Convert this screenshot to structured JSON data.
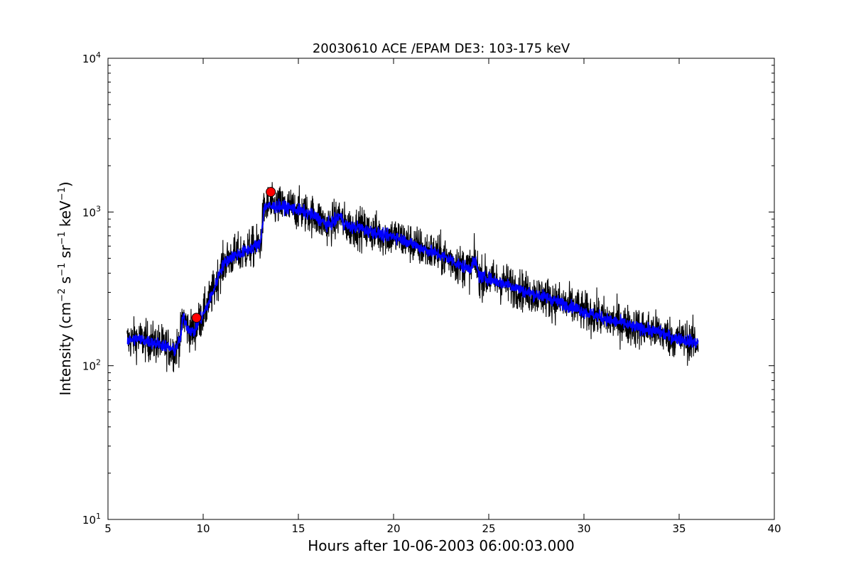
{
  "chart_data": {
    "type": "line",
    "title": "20030610 ACE /EPAM DE3: 103-175 keV",
    "xlabel": "Hours after 10-06-2003 06:00:03.000",
    "ylabel_main": "Intensity (cm",
    "ylabel_sup1": "−2",
    "ylabel_mid1": " s",
    "ylabel_sup2": "−1",
    "ylabel_mid2": " sr",
    "ylabel_sup3": "−1",
    "ylabel_mid3": " keV",
    "ylabel_sup4": "−1",
    "ylabel_end": ")",
    "xlim": [
      5,
      40
    ],
    "ylim": [
      10,
      10000
    ],
    "yscale": "log",
    "grid": false,
    "x_ticks": [
      5,
      10,
      15,
      20,
      25,
      30,
      35,
      40
    ],
    "x_tick_labels": [
      "5",
      "10",
      "15",
      "20",
      "25",
      "30",
      "35",
      "40"
    ],
    "y_ticks": [
      {
        "value": 10,
        "base": "10",
        "exp": "1"
      },
      {
        "value": 100,
        "base": "10",
        "exp": "2"
      },
      {
        "value": 1000,
        "base": "10",
        "exp": "3"
      },
      {
        "value": 10000,
        "base": "10",
        "exp": "4"
      }
    ],
    "series": [
      {
        "color": "#000000",
        "style": "raw noisy",
        "x": [
          6.0,
          6.5,
          7.0,
          7.5,
          8.0,
          8.5,
          8.8,
          8.95,
          9.2,
          9.5,
          9.8,
          10.0,
          10.3,
          10.6,
          10.9,
          11.2,
          11.6,
          12.0,
          12.5,
          13.0,
          13.2,
          13.35,
          13.6,
          14.0,
          14.5,
          15.0,
          15.5,
          16.0,
          16.5,
          17.0,
          17.15,
          17.4,
          17.8,
          18.2,
          18.5,
          19.0,
          19.5,
          20.0,
          20.5,
          21.0,
          21.5,
          22.0,
          22.5,
          23.0,
          23.5,
          24.0,
          24.3,
          24.5,
          25.0,
          25.5,
          26.0,
          26.5,
          27.0,
          27.5,
          28.0,
          28.5,
          29.0,
          29.5,
          30.0,
          30.5,
          31.0,
          31.5,
          32.0,
          32.5,
          33.0,
          33.5,
          34.0,
          34.5,
          35.0,
          35.5,
          36.0
        ],
        "y": [
          145,
          150,
          145,
          140,
          135,
          125,
          150,
          210,
          175,
          165,
          195,
          215,
          260,
          320,
          420,
          480,
          520,
          540,
          580,
          620,
          1050,
          1100,
          1080,
          1090,
          1070,
          1030,
          980,
          920,
          820,
          880,
          960,
          840,
          790,
          800,
          760,
          740,
          700,
          700,
          660,
          620,
          580,
          550,
          520,
          490,
          450,
          430,
          480,
          380,
          370,
          350,
          340,
          320,
          300,
          290,
          280,
          265,
          250,
          240,
          225,
          215,
          205,
          195,
          190,
          180,
          175,
          170,
          165,
          155,
          150,
          145,
          140
        ],
        "noise": 0.13
      },
      {
        "color": "#0000ff",
        "style": "smoothed",
        "x": [
          6.0,
          6.5,
          7.0,
          7.5,
          8.0,
          8.5,
          8.8,
          8.95,
          9.2,
          9.5,
          9.8,
          10.0,
          10.3,
          10.6,
          10.9,
          11.2,
          11.6,
          12.0,
          12.5,
          13.0,
          13.2,
          13.35,
          13.6,
          14.0,
          14.5,
          15.0,
          15.5,
          16.0,
          16.5,
          17.0,
          17.15,
          17.4,
          17.8,
          18.2,
          18.5,
          19.0,
          19.5,
          20.0,
          20.5,
          21.0,
          21.5,
          22.0,
          22.5,
          23.0,
          23.5,
          24.0,
          24.3,
          24.5,
          25.0,
          25.5,
          26.0,
          26.5,
          27.0,
          27.5,
          28.0,
          28.5,
          29.0,
          29.5,
          30.0,
          30.5,
          31.0,
          31.5,
          32.0,
          32.5,
          33.0,
          33.5,
          34.0,
          34.5,
          35.0,
          35.5,
          36.0
        ],
        "y": [
          145,
          150,
          145,
          140,
          135,
          125,
          150,
          210,
          175,
          165,
          195,
          215,
          260,
          320,
          420,
          480,
          520,
          540,
          580,
          620,
          1050,
          1100,
          1080,
          1090,
          1070,
          1030,
          980,
          920,
          820,
          880,
          960,
          840,
          790,
          800,
          760,
          740,
          700,
          700,
          660,
          620,
          580,
          550,
          520,
          490,
          450,
          430,
          480,
          380,
          370,
          350,
          340,
          320,
          300,
          290,
          280,
          265,
          250,
          240,
          225,
          215,
          205,
          195,
          190,
          180,
          175,
          170,
          165,
          155,
          150,
          145,
          140
        ],
        "noise": 0.04
      }
    ],
    "markers": [
      {
        "x": 13.55,
        "y": 1350,
        "color": "#ff0000"
      },
      {
        "x": 9.65,
        "y": 205,
        "color": "#ff0000"
      }
    ]
  }
}
